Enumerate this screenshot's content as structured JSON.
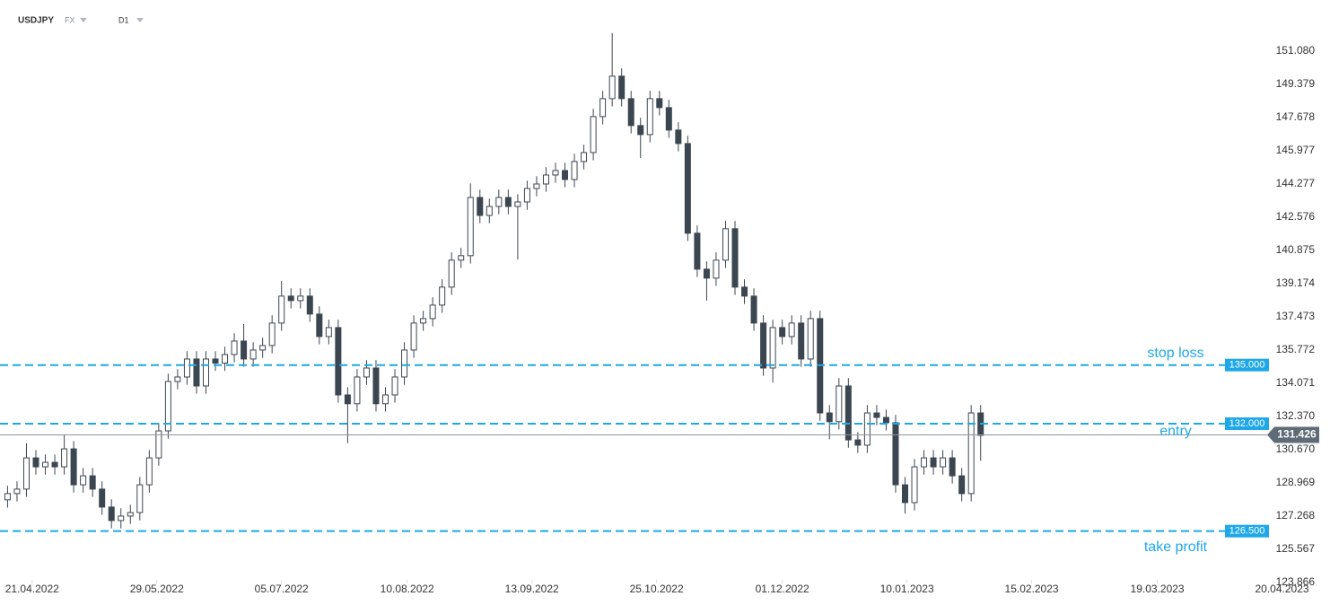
{
  "header": {
    "symbol": "USDJPY",
    "market": "FX",
    "timeframe": "D1"
  },
  "chart_data": {
    "type": "candlestick",
    "color": "#3c4650",
    "open": [
      128.1,
      128.42,
      128.65,
      130.25,
      129.79,
      130.02,
      129.79,
      130.71,
      128.87,
      129.33,
      128.65,
      127.73,
      127.04,
      127.27,
      127.45,
      128.87,
      130.25,
      131.63,
      134.16,
      134.39,
      135.31,
      133.93,
      135.31,
      135.1,
      135.54,
      136.23,
      135.31,
      135.77,
      136.0,
      137.15,
      138.53,
      138.3,
      138.53,
      137.61,
      136.46,
      136.92,
      133.47,
      133.02,
      134.39,
      134.85,
      133.02,
      133.47,
      134.39,
      135.77,
      137.15,
      137.38,
      138.07,
      138.99,
      140.37,
      140.6,
      143.58,
      142.66,
      143.12,
      143.58,
      143.12,
      143.35,
      144.04,
      144.27,
      144.73,
      144.96,
      144.5,
      145.42,
      145.88,
      147.72,
      148.64,
      149.79,
      148.64,
      147.26,
      146.8,
      148.64,
      148.18,
      147.03,
      146.34,
      141.75,
      139.91,
      139.45,
      140.37,
      141.98,
      138.99,
      138.53,
      137.15,
      134.85,
      136.92,
      136.46,
      137.15,
      135.31,
      137.38,
      132.55,
      132.1,
      133.93,
      131.17,
      130.9,
      132.55,
      132.32,
      132.05,
      128.87,
      127.96,
      129.79,
      130.25,
      129.79,
      130.25,
      129.33,
      128.42,
      132.55
    ],
    "high": [
      128.82,
      129.05,
      131.0,
      130.65,
      130.42,
      130.42,
      131.4,
      131.11,
      129.73,
      129.73,
      129.05,
      128.13,
      127.67,
      127.85,
      129.27,
      130.65,
      132.03,
      134.56,
      134.79,
      135.71,
      135.71,
      135.71,
      135.71,
      135.94,
      136.63,
      137.1,
      136.17,
      136.4,
      137.55,
      139.3,
      138.93,
      138.93,
      138.93,
      138.01,
      137.32,
      137.32,
      133.87,
      134.79,
      135.25,
      135.25,
      133.87,
      134.79,
      136.17,
      137.55,
      137.78,
      138.47,
      139.39,
      140.77,
      141.0,
      144.3,
      143.98,
      143.52,
      143.98,
      143.98,
      143.75,
      144.44,
      144.67,
      145.13,
      145.36,
      145.36,
      145.82,
      146.28,
      148.12,
      149.04,
      152.0,
      150.19,
      149.04,
      147.66,
      149.04,
      149.04,
      148.58,
      147.43,
      146.74,
      142.15,
      140.31,
      140.77,
      142.38,
      142.38,
      139.39,
      138.93,
      137.55,
      137.32,
      137.32,
      137.55,
      137.55,
      137.78,
      137.78,
      132.95,
      134.33,
      134.33,
      131.57,
      132.95,
      132.95,
      132.72,
      132.45,
      129.27,
      130.19,
      130.65,
      130.65,
      130.65,
      130.65,
      129.73,
      132.95,
      132.95
    ],
    "low": [
      127.7,
      128.02,
      128.25,
      129.39,
      129.39,
      129.39,
      129.39,
      128.47,
      128.47,
      128.25,
      127.33,
      126.64,
      126.64,
      126.87,
      127.05,
      128.47,
      129.85,
      131.23,
      133.76,
      133.99,
      133.53,
      133.53,
      134.7,
      134.7,
      135.14,
      134.91,
      134.91,
      135.37,
      135.6,
      136.75,
      137.9,
      137.9,
      137.21,
      136.06,
      136.06,
      133.07,
      131.0,
      132.62,
      133.99,
      132.62,
      132.62,
      133.07,
      133.99,
      135.37,
      136.75,
      136.98,
      137.67,
      138.59,
      139.97,
      140.2,
      142.26,
      142.26,
      142.72,
      142.72,
      140.4,
      142.95,
      143.64,
      143.87,
      144.33,
      144.1,
      144.1,
      145.02,
      145.48,
      147.32,
      148.24,
      148.24,
      146.86,
      145.6,
      146.4,
      147.78,
      146.63,
      145.94,
      141.35,
      139.51,
      138.3,
      139.05,
      139.97,
      138.59,
      138.13,
      136.75,
      134.45,
      134.1,
      136.06,
      136.06,
      134.91,
      134.91,
      132.15,
      131.2,
      131.7,
      130.77,
      130.5,
      130.5,
      131.92,
      131.65,
      128.47,
      127.4,
      127.56,
      129.39,
      129.39,
      129.39,
      128.93,
      128.02,
      128.02,
      130.1
    ],
    "close": [
      128.42,
      128.65,
      130.25,
      129.79,
      130.02,
      129.79,
      130.71,
      128.87,
      129.33,
      128.65,
      127.73,
      127.04,
      127.27,
      127.45,
      128.87,
      130.25,
      131.63,
      134.16,
      134.39,
      135.31,
      133.93,
      135.31,
      135.1,
      135.54,
      136.23,
      135.31,
      135.77,
      136.0,
      137.15,
      138.53,
      138.3,
      138.53,
      137.61,
      136.46,
      136.92,
      133.47,
      133.02,
      134.39,
      134.85,
      133.02,
      133.47,
      134.39,
      135.77,
      137.15,
      137.38,
      138.07,
      138.99,
      140.37,
      140.6,
      143.58,
      142.66,
      143.12,
      143.58,
      143.12,
      143.35,
      144.04,
      144.27,
      144.73,
      144.96,
      144.5,
      145.42,
      145.88,
      147.72,
      148.64,
      149.79,
      148.64,
      147.26,
      146.8,
      148.64,
      148.18,
      147.03,
      146.34,
      141.75,
      139.91,
      139.45,
      140.37,
      141.98,
      138.99,
      138.53,
      137.15,
      134.85,
      136.92,
      136.46,
      137.15,
      135.31,
      137.38,
      132.55,
      132.1,
      133.93,
      131.17,
      130.9,
      132.55,
      132.32,
      132.05,
      128.87,
      127.96,
      129.79,
      130.25,
      129.79,
      130.25,
      129.33,
      128.42,
      132.55,
      131.4
    ],
    "xlim": [
      -0.8,
      137.7
    ],
    "xticks": [
      {
        "value": 2.6,
        "label": "21.04.2022"
      },
      {
        "value": 15.8,
        "label": "29.05.2022"
      },
      {
        "value": 29.0,
        "label": "05.07.2022"
      },
      {
        "value": 42.3,
        "label": "10.08.2022"
      },
      {
        "value": 55.5,
        "label": "13.09.2022"
      },
      {
        "value": 68.7,
        "label": "25.10.2022"
      },
      {
        "value": 82.0,
        "label": "01.12.2022"
      },
      {
        "value": 95.2,
        "label": "10.01.2023"
      },
      {
        "value": 108.4,
        "label": "15.02.2023"
      },
      {
        "value": 121.7,
        "label": "19.03.2023"
      },
      {
        "value": 134.9,
        "label": "20.04.2023"
      }
    ],
    "ylim": [
      123.36,
      152.77
    ],
    "yticks": [
      123.866,
      125.567,
      127.268,
      128.969,
      {
        "value": 130.67,
        "label": "130.670"
      },
      {
        "value": 132.37,
        "label": "132.370"
      },
      134.071,
      135.772,
      137.473,
      139.174,
      140.875,
      142.576,
      144.277,
      145.977,
      147.678,
      149.379,
      {
        "value": 151.08,
        "label": "151.080"
      }
    ],
    "level_color": "#1fa8e8",
    "levels": [
      {
        "name": "stop loss",
        "value": 135,
        "value_label": "135.000"
      },
      {
        "name": "entry",
        "value": 132,
        "value_label": "132.000"
      },
      {
        "name": "take profit",
        "value": 126.5,
        "value_label": "126.500"
      }
    ],
    "last_price": 131.426,
    "last_price_color": "#5f6b76"
  }
}
